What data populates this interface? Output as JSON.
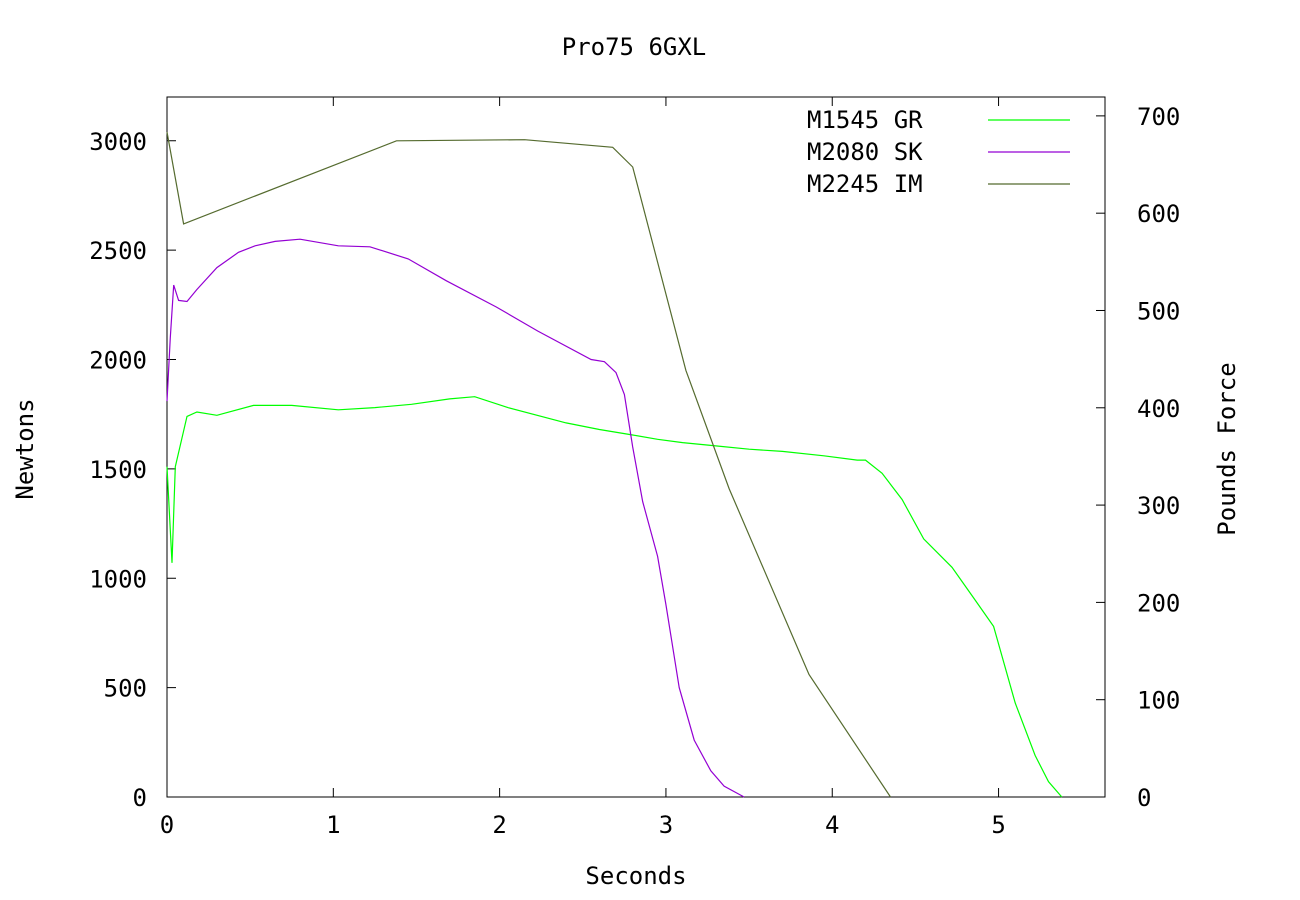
{
  "chart_data": {
    "type": "line",
    "title": "Pro75 6GXL",
    "xlabel": "Seconds",
    "ylabel": "Newtons",
    "y2label": "Pounds Force",
    "xlim": [
      0,
      5.64
    ],
    "ylim": [
      0,
      3200
    ],
    "y2lim": [
      0,
      719.4
    ],
    "xticks": [
      "0",
      "1",
      "2",
      "3",
      "4",
      "5"
    ],
    "yticks": [
      "0",
      "500",
      "1000",
      "1500",
      "2000",
      "2500",
      "3000"
    ],
    "y2ticks": [
      "0",
      "100",
      "200",
      "300",
      "400",
      "500",
      "600",
      "700"
    ],
    "grid": false,
    "legend_position": "top-right",
    "series": [
      {
        "name": "M1545 GR",
        "color": "#00ff00",
        "x": [
          0.0,
          0.03,
          0.05,
          0.12,
          0.18,
          0.3,
          0.52,
          0.75,
          1.03,
          1.25,
          1.47,
          1.7,
          1.85,
          2.05,
          2.4,
          2.6,
          2.8,
          2.95,
          3.1,
          3.3,
          3.5,
          3.7,
          3.95,
          4.15,
          4.2,
          4.3,
          4.42,
          4.55,
          4.72,
          4.85,
          4.97,
          5.1,
          5.22,
          5.3,
          5.38
        ],
        "y": [
          1510,
          1070,
          1510,
          1740,
          1760,
          1745,
          1790,
          1790,
          1770,
          1780,
          1795,
          1820,
          1830,
          1780,
          1710,
          1680,
          1655,
          1635,
          1620,
          1605,
          1590,
          1580,
          1560,
          1540,
          1540,
          1480,
          1360,
          1180,
          1050,
          910,
          780,
          430,
          190,
          70,
          0
        ]
      },
      {
        "name": "M2080 SK",
        "color": "#9400d3",
        "x": [
          0.0,
          0.02,
          0.04,
          0.07,
          0.12,
          0.18,
          0.3,
          0.43,
          0.53,
          0.65,
          0.8,
          1.03,
          1.22,
          1.45,
          1.68,
          1.98,
          2.23,
          2.55,
          2.63,
          2.7,
          2.75,
          2.8,
          2.86,
          2.95,
          3.0,
          3.08,
          3.17,
          3.27,
          3.35,
          3.47
        ],
        "y": [
          1810,
          2100,
          2340,
          2270,
          2265,
          2320,
          2420,
          2490,
          2520,
          2540,
          2550,
          2520,
          2515,
          2460,
          2360,
          2240,
          2130,
          2000,
          1990,
          1940,
          1840,
          1600,
          1350,
          1100,
          880,
          500,
          260,
          120,
          50,
          0
        ]
      },
      {
        "name": "M2245 IM",
        "color": "#556b2f",
        "x": [
          0.0,
          0.1,
          1.38,
          2.15,
          2.68,
          2.8,
          3.12,
          3.38,
          3.86,
          4.35
        ],
        "y": [
          3040,
          2620,
          3000,
          3005,
          2970,
          2880,
          1950,
          1410,
          560,
          0
        ]
      }
    ]
  }
}
